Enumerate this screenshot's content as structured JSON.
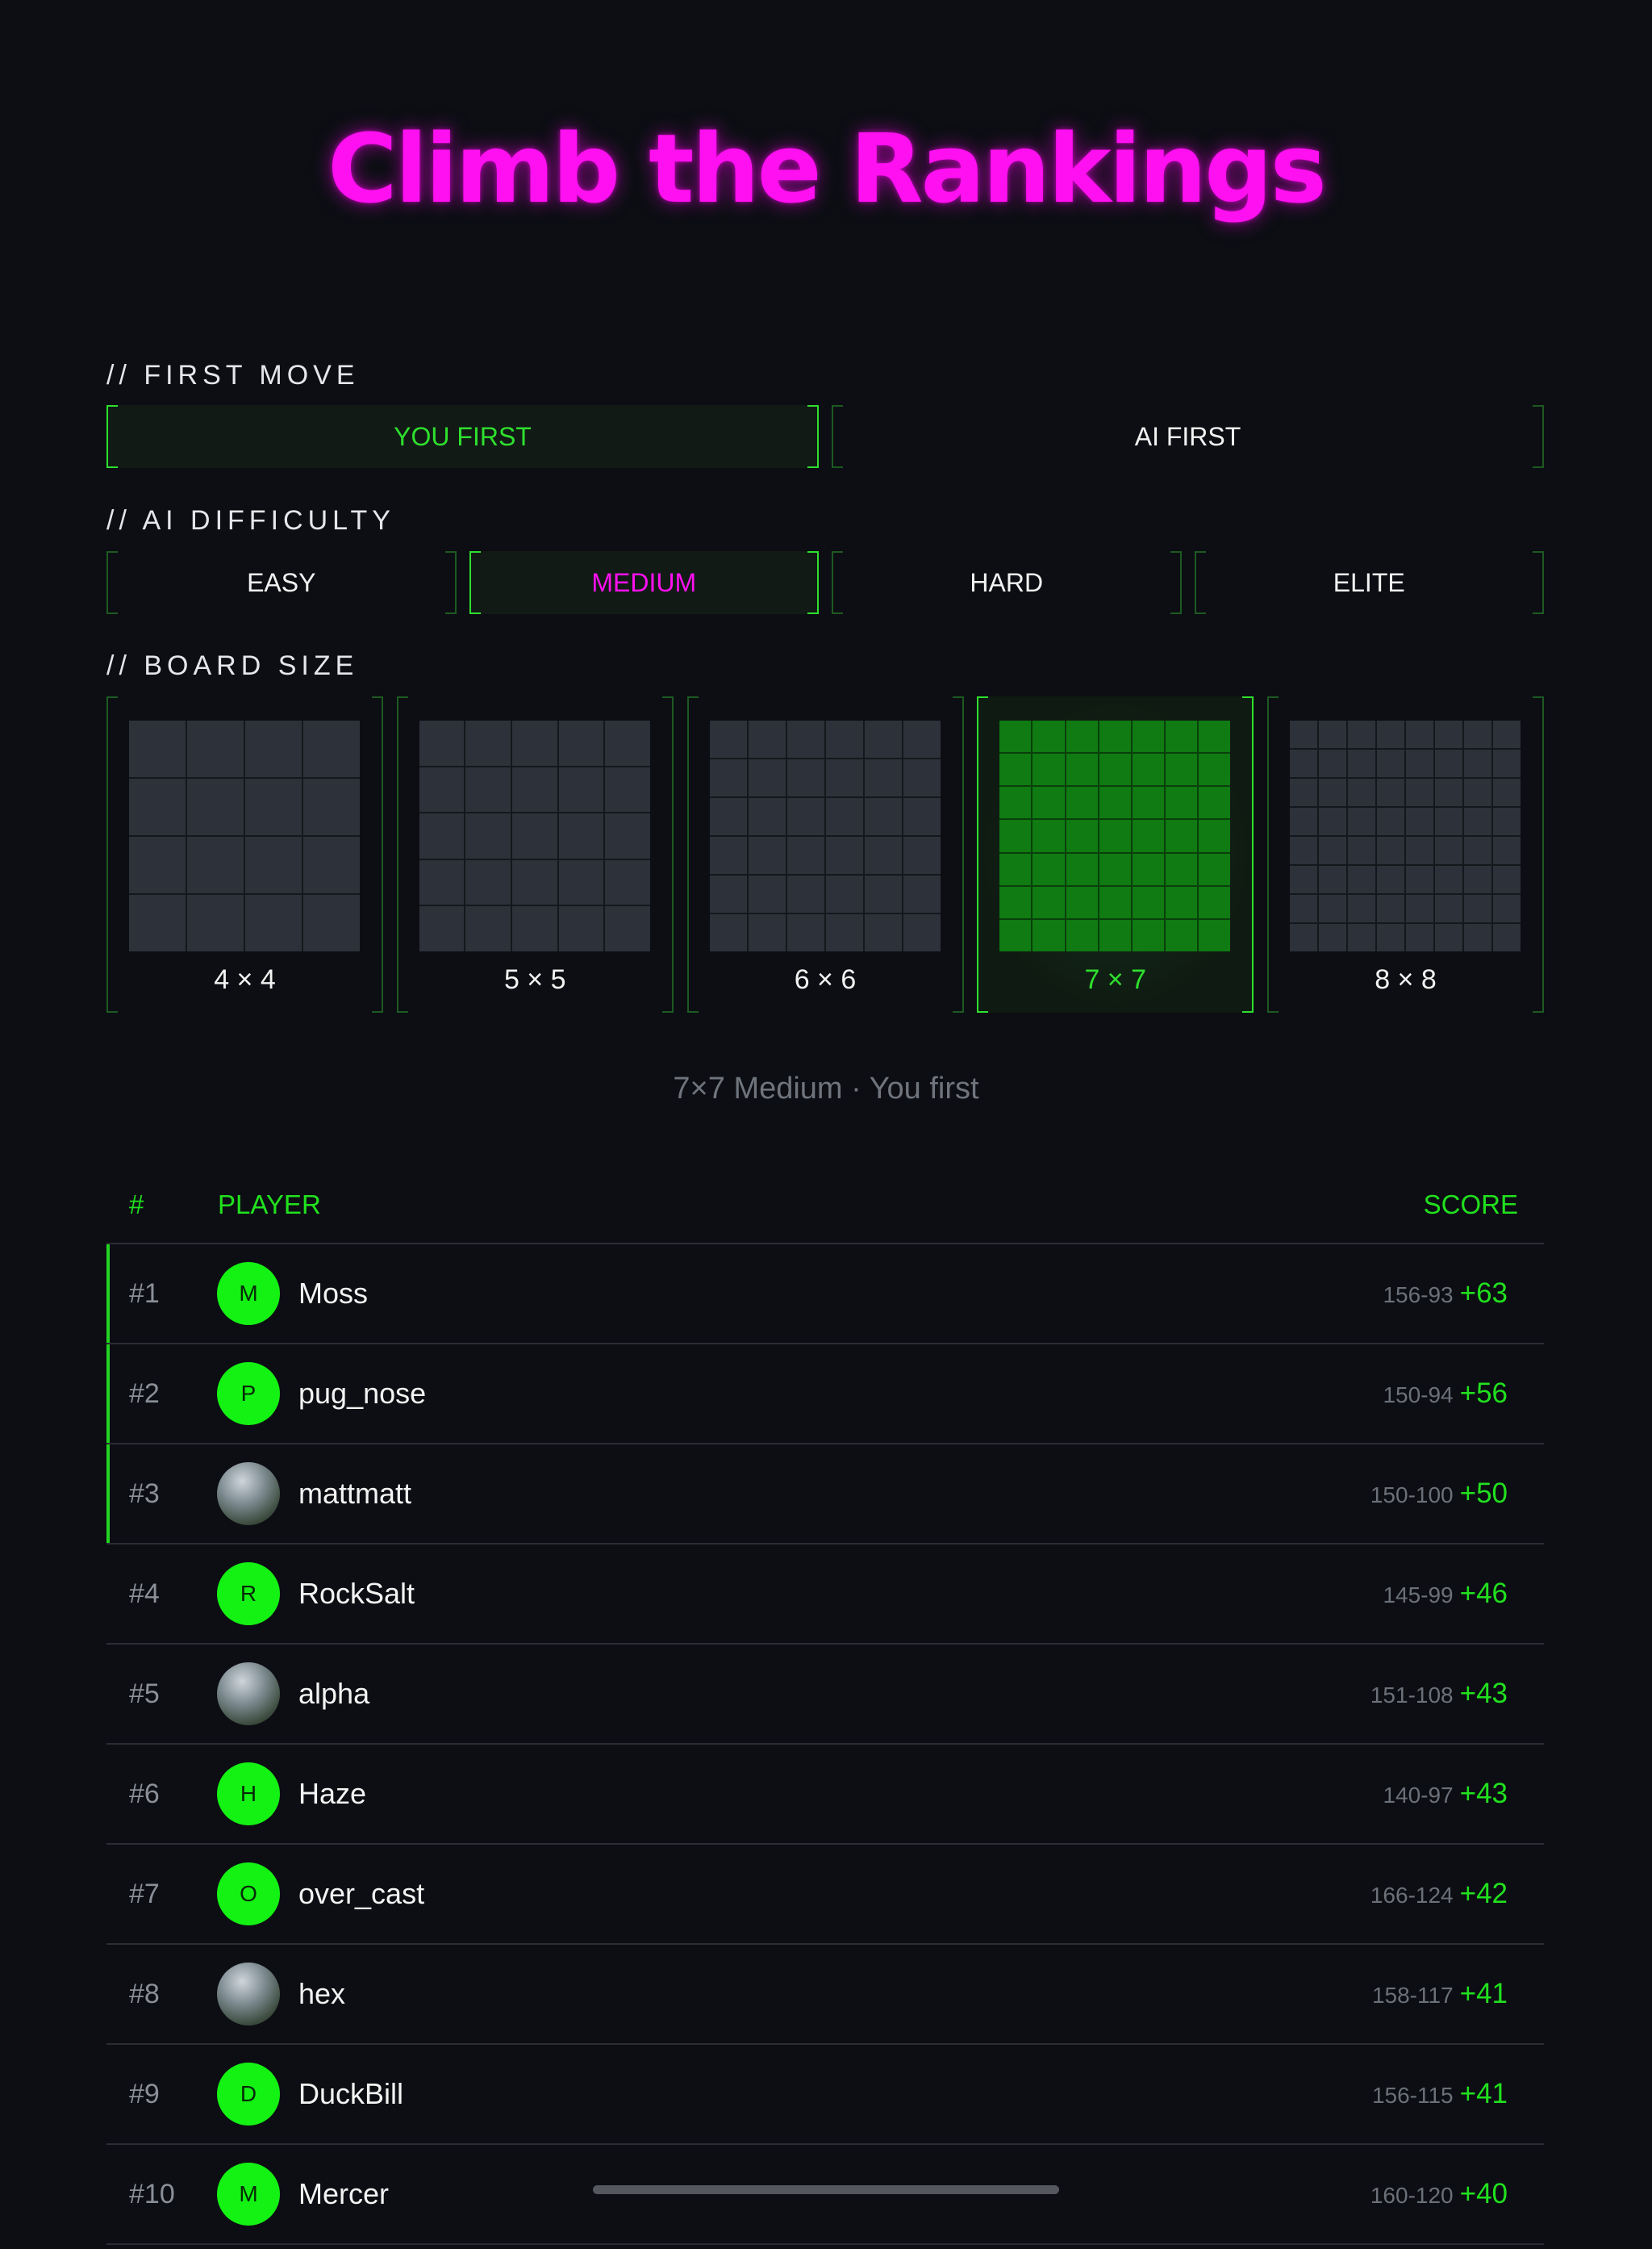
{
  "header": {
    "title": "Climb the Rankings"
  },
  "first_move": {
    "label": "// FIRST MOVE",
    "options": [
      {
        "text": "YOU FIRST",
        "selected": true
      },
      {
        "text": "AI FIRST",
        "selected": false
      }
    ]
  },
  "difficulty": {
    "label": "// AI DIFFICULTY",
    "options": [
      {
        "text": "EASY",
        "selected": false
      },
      {
        "text": "MEDIUM",
        "selected": true
      },
      {
        "text": "HARD",
        "selected": false
      },
      {
        "text": "ELITE",
        "selected": false
      }
    ]
  },
  "board_size": {
    "label": "// BOARD SIZE",
    "options": [
      {
        "text": "4 × 4",
        "n": 4,
        "selected": false
      },
      {
        "text": "5 × 5",
        "n": 5,
        "selected": false
      },
      {
        "text": "6 × 6",
        "n": 6,
        "selected": false
      },
      {
        "text": "7 × 7",
        "n": 7,
        "selected": true
      },
      {
        "text": "8 × 8",
        "n": 8,
        "selected": false
      }
    ]
  },
  "summary": "7×7 Medium · You first",
  "leaderboard": {
    "columns": [
      "#",
      "PLAYER",
      "SCORE"
    ],
    "rows": [
      {
        "rank": "#1",
        "avatar": "M",
        "name": "Moss",
        "record": "156-93",
        "score": "+63",
        "highlighted": true
      },
      {
        "rank": "#2",
        "avatar": "P",
        "name": "pug_nose",
        "record": "150-94",
        "score": "+56",
        "highlighted": true
      },
      {
        "rank": "#3",
        "name": "mattmatt",
        "record": "150-100",
        "score": "+50",
        "highlighted": true
      },
      {
        "rank": "#4",
        "avatar": "R",
        "name": "RockSalt",
        "record": "145-99",
        "score": "+46",
        "highlighted": false
      },
      {
        "rank": "#5",
        "name": "alpha",
        "record": "151-108",
        "score": "+43",
        "highlighted": false
      },
      {
        "rank": "#6",
        "avatar": "H",
        "name": "Haze",
        "record": "140-97",
        "score": "+43",
        "highlighted": false
      },
      {
        "rank": "#7",
        "avatar": "O",
        "name": "over_cast",
        "record": "166-124",
        "score": "+42",
        "highlighted": false
      },
      {
        "rank": "#8",
        "name": "hex",
        "record": "158-117",
        "score": "+41",
        "highlighted": false
      },
      {
        "rank": "#9",
        "avatar": "D",
        "name": "DuckBill",
        "record": "156-115",
        "score": "+41",
        "highlighted": false
      },
      {
        "rank": "#10",
        "avatar": "M",
        "name": "Mercer",
        "record": "160-120",
        "score": "+40",
        "highlighted": false
      }
    ]
  }
}
